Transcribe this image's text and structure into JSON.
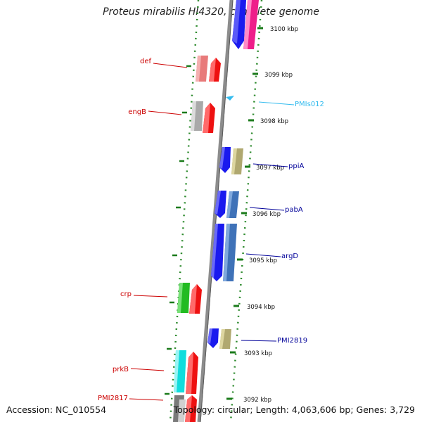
{
  "title": "Proteus mirabilis HI4320, complete genome",
  "footer": {
    "accession": "Accession: NC_010554",
    "summary": "Topology: circular; Length: 4,063,606 bp; Genes: 3,729"
  },
  "ruler_labels": [
    {
      "text": "3100 kbp"
    },
    {
      "text": "3099 kbp"
    },
    {
      "text": "3098 kbp"
    },
    {
      "text": "3097 kbp"
    },
    {
      "text": "3096 kbp"
    },
    {
      "text": "3095 kbp"
    },
    {
      "text": "3094 kbp"
    },
    {
      "text": "3093 kbp"
    },
    {
      "text": "3092 kbp"
    }
  ],
  "genes": [
    {
      "name": "def",
      "color": "#cc0000"
    },
    {
      "name": "engB",
      "color": "#cc0000"
    },
    {
      "name": "PMIs012",
      "color": "#33bbee"
    },
    {
      "name": "ppiA",
      "color": "#000099"
    },
    {
      "name": "pabA",
      "color": "#000099"
    },
    {
      "name": "argD",
      "color": "#000099"
    },
    {
      "name": "crp",
      "color": "#cc0000"
    },
    {
      "name": "PMI2819",
      "color": "#000099"
    },
    {
      "name": "prkB",
      "color": "#cc0000"
    },
    {
      "name": "PMI2817",
      "color": "#cc0000"
    }
  ],
  "colors": {
    "backbone": "#888888",
    "tick_green": "#1a7a1a"
  }
}
